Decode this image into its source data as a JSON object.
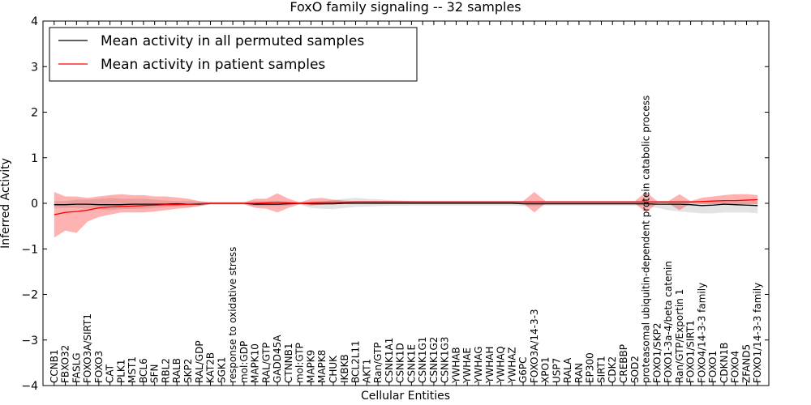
{
  "chart_data": {
    "type": "line",
    "title": "FoxO family signaling -- 32 samples",
    "xlabel": "Cellular Entities",
    "ylabel": "Inferred Activity",
    "ylim": [
      -4,
      4
    ],
    "yticks": [
      -4,
      -3,
      -2,
      -1,
      0,
      1,
      2,
      3,
      4
    ],
    "ytick_labels": [
      "−4",
      "−3",
      "−2",
      "−1",
      "0",
      "1",
      "2",
      "3",
      "4"
    ],
    "grid": false,
    "legend_position": "top-left",
    "categories": [
      "CCNB1",
      "FBXO32",
      "FASLG",
      "FOXO3A/SIRT1",
      "FOXO3",
      "CAT",
      "PLK1",
      "MST1",
      "BCL6",
      "SFN",
      "RBL2",
      "RALB",
      "SKP2",
      "RAL/GDP",
      "KAT2B",
      "SGK1",
      "response to oxidative stress",
      "mol:GDP",
      "MAPK10",
      "RAL/GTP",
      "GADD45A",
      "CTNNB1",
      "mol:GTP",
      "MAPK9",
      "MAPK8",
      "CHUK",
      "IKBKB",
      "BCL2L11",
      "AKT1",
      "Ran/GTP",
      "CSNK1A1",
      "CSNK1D",
      "CSNK1E",
      "CSNK1G1",
      "CSNK1G2",
      "CSNK1G3",
      "YWHAB",
      "YWHAE",
      "YWHAG",
      "YWHAH",
      "YWHAQ",
      "YWHAZ",
      "G6PC",
      "FOXO3A/14-3-3",
      "XPO1",
      "USP7",
      "RALA",
      "RAN",
      "EP300",
      "SIRT1",
      "CDK2",
      "CREBBP",
      "SOD2",
      "proteasomal ubiquitin-dependent protein catabolic process",
      "FOXO1/SKP2",
      "FOXO1-3a-4/beta catenin",
      "Ran/GTP/Exportin 1",
      "FOXO1/SIRT1",
      "FOXO4/14-3-3 family",
      "FOXO1",
      "CDKN1B",
      "FOXO4",
      "ZFAND5",
      "FOXO1/14-3-3 family"
    ],
    "series": [
      {
        "name": "Mean activity in all permuted samples",
        "color": "#000000",
        "values": [
          -0.03,
          -0.03,
          -0.02,
          -0.02,
          -0.03,
          -0.03,
          -0.03,
          -0.02,
          -0.02,
          -0.02,
          -0.02,
          -0.01,
          -0.02,
          -0.02,
          0,
          0,
          0,
          0,
          -0.02,
          -0.02,
          -0.02,
          -0.01,
          0,
          -0.01,
          -0.01,
          -0.01,
          0,
          0,
          0,
          0,
          0,
          0,
          0,
          0,
          0,
          0,
          0,
          0,
          0,
          0,
          0,
          0,
          -0.01,
          -0.01,
          -0.01,
          -0.01,
          -0.01,
          -0.01,
          -0.01,
          -0.01,
          -0.01,
          -0.01,
          -0.01,
          -0.01,
          -0.02,
          -0.02,
          -0.02,
          -0.03,
          -0.05,
          -0.04,
          -0.02,
          -0.03,
          -0.04,
          -0.05
        ],
        "band_upper": [
          0.05,
          0.05,
          0.08,
          0.08,
          0.1,
          0.12,
          0.1,
          0.1,
          0.1,
          0.08,
          0.06,
          0.05,
          0.05,
          0.04,
          0.03,
          0.03,
          0.03,
          0.03,
          0.05,
          0.05,
          0.05,
          0.04,
          0.03,
          0.04,
          0.04,
          0.07,
          0.1,
          0.12,
          0.1,
          0.09,
          0.07,
          0.06,
          0.05,
          0.04,
          0.04,
          0.04,
          0.04,
          0.04,
          0.04,
          0.04,
          0.04,
          0.04,
          0.04,
          0.04,
          0.04,
          0.04,
          0.04,
          0.04,
          0.04,
          0.04,
          0.04,
          0.04,
          0.04,
          0.05,
          0.05,
          0.05,
          0.05,
          0.05,
          0.05,
          0.05,
          0.05,
          0.05,
          0.05,
          0.05
        ],
        "band_lower": [
          -0.1,
          -0.1,
          -0.1,
          -0.12,
          -0.13,
          -0.15,
          -0.13,
          -0.12,
          -0.12,
          -0.1,
          -0.08,
          -0.07,
          -0.07,
          -0.06,
          -0.03,
          -0.03,
          -0.03,
          -0.03,
          -0.06,
          -0.06,
          -0.06,
          -0.05,
          -0.03,
          -0.1,
          -0.12,
          -0.13,
          -0.1,
          -0.08,
          -0.07,
          -0.06,
          -0.05,
          -0.05,
          -0.05,
          -0.05,
          -0.05,
          -0.05,
          -0.05,
          -0.05,
          -0.05,
          -0.05,
          -0.05,
          -0.05,
          -0.06,
          -0.06,
          -0.05,
          -0.05,
          -0.05,
          -0.05,
          -0.05,
          -0.05,
          -0.05,
          -0.05,
          -0.05,
          -0.06,
          -0.1,
          -0.15,
          -0.18,
          -0.2,
          -0.22,
          -0.22,
          -0.2,
          -0.2,
          -0.2,
          -0.22
        ]
      },
      {
        "name": "Mean activity in patient samples",
        "color": "#ff0000",
        "values": [
          -0.25,
          -0.2,
          -0.18,
          -0.15,
          -0.1,
          -0.08,
          -0.07,
          -0.06,
          -0.05,
          -0.04,
          -0.03,
          -0.03,
          -0.02,
          -0.01,
          0,
          0,
          0,
          0,
          0,
          0.01,
          0.02,
          0.01,
          0,
          0.01,
          0.02,
          0.02,
          0.02,
          0.03,
          0.03,
          0.03,
          0.03,
          0.03,
          0.03,
          0.03,
          0.03,
          0.03,
          0.03,
          0.03,
          0.03,
          0.03,
          0.03,
          0.03,
          0.03,
          0.03,
          0.03,
          0.03,
          0.03,
          0.03,
          0.03,
          0.03,
          0.03,
          0.03,
          0.03,
          0.03,
          0.03,
          0.03,
          0.03,
          0.03,
          0.04,
          0.05,
          0.06,
          0.06,
          0.07,
          0.08
        ],
        "band_upper": [
          0.25,
          0.15,
          0.15,
          0.12,
          0.15,
          0.18,
          0.2,
          0.18,
          0.18,
          0.15,
          0.15,
          0.13,
          0.1,
          0.05,
          0.02,
          0.02,
          0.02,
          0.02,
          0.1,
          0.1,
          0.22,
          0.1,
          0.02,
          0.1,
          0.12,
          0.08,
          0.06,
          0.05,
          0.05,
          0.05,
          0.05,
          0.05,
          0.05,
          0.05,
          0.05,
          0.05,
          0.05,
          0.05,
          0.05,
          0.05,
          0.05,
          0.05,
          0.05,
          0.25,
          0.05,
          0.05,
          0.05,
          0.05,
          0.05,
          0.05,
          0.05,
          0.05,
          0.05,
          0.25,
          0.05,
          0.05,
          0.2,
          0.05,
          0.12,
          0.15,
          0.18,
          0.2,
          0.2,
          0.18
        ],
        "band_lower": [
          -0.75,
          -0.6,
          -0.65,
          -0.4,
          -0.3,
          -0.25,
          -0.2,
          -0.2,
          -0.2,
          -0.18,
          -0.15,
          -0.12,
          -0.1,
          -0.06,
          -0.02,
          -0.02,
          -0.02,
          -0.02,
          -0.1,
          -0.12,
          -0.2,
          -0.1,
          -0.02,
          -0.05,
          -0.03,
          -0.01,
          0,
          0,
          0,
          0,
          0,
          0,
          0,
          0,
          0,
          0,
          0,
          0,
          0,
          0,
          0,
          0,
          0,
          -0.2,
          0,
          0,
          0,
          0,
          0,
          0,
          0,
          0,
          0,
          -0.2,
          0,
          0,
          -0.15,
          0,
          -0.02,
          -0.02,
          -0.02,
          -0.02,
          -0.02,
          -0.02
        ]
      }
    ]
  }
}
